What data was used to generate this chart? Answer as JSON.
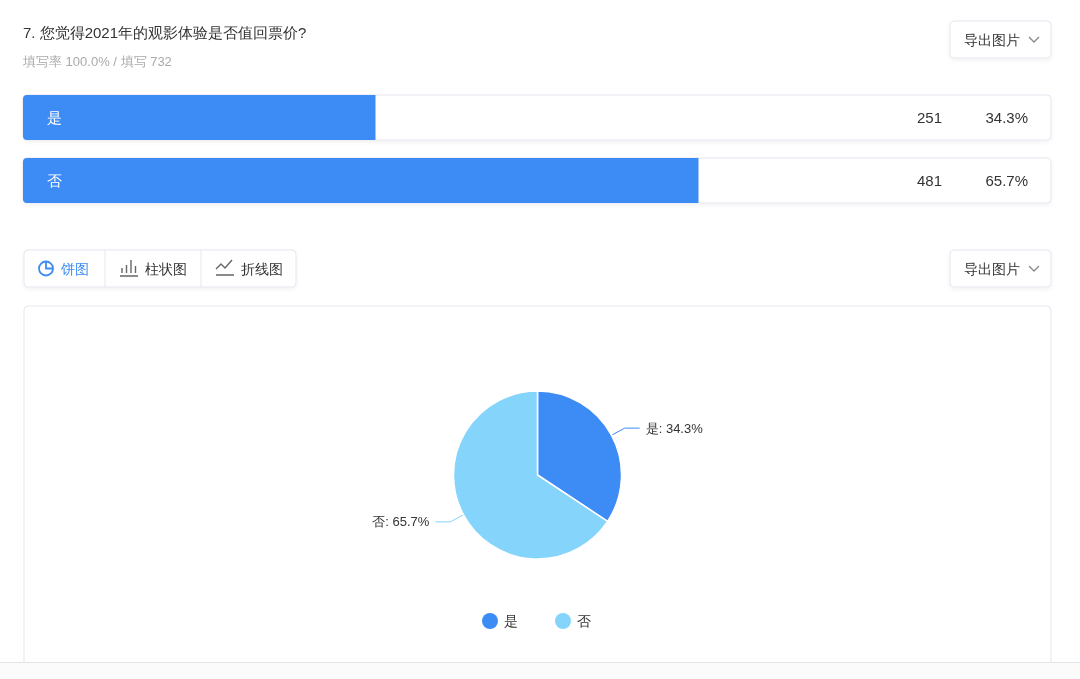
{
  "chart_data": [
    {
      "type": "bar",
      "orientation": "horizontal",
      "title": "7. 您觉得2021年的观影体验是否值回票价?",
      "subtitle": "填写率 100.0% / 填写 732",
      "categories": [
        "是",
        "否"
      ],
      "values": [
        251,
        481
      ],
      "color": "#3d8bf4",
      "xlim": [
        0,
        732
      ],
      "tick_labels": "y",
      "data_labels": true,
      "annotations": [
        "34.3%",
        "65.7%",
        "导出图片"
      ]
    },
    {
      "type": "pie",
      "categories": [
        "是",
        "否"
      ],
      "values": [
        34.3,
        65.7
      ],
      "colors": [
        "#3d8bf4",
        "#85d4fb"
      ],
      "value_labels": [
        "是: 34.3%",
        "否: 65.7%"
      ],
      "legend": "bottom",
      "annotations": [
        "饼图",
        "柱状图",
        "折线图",
        "导出图片"
      ]
    }
  ]
}
